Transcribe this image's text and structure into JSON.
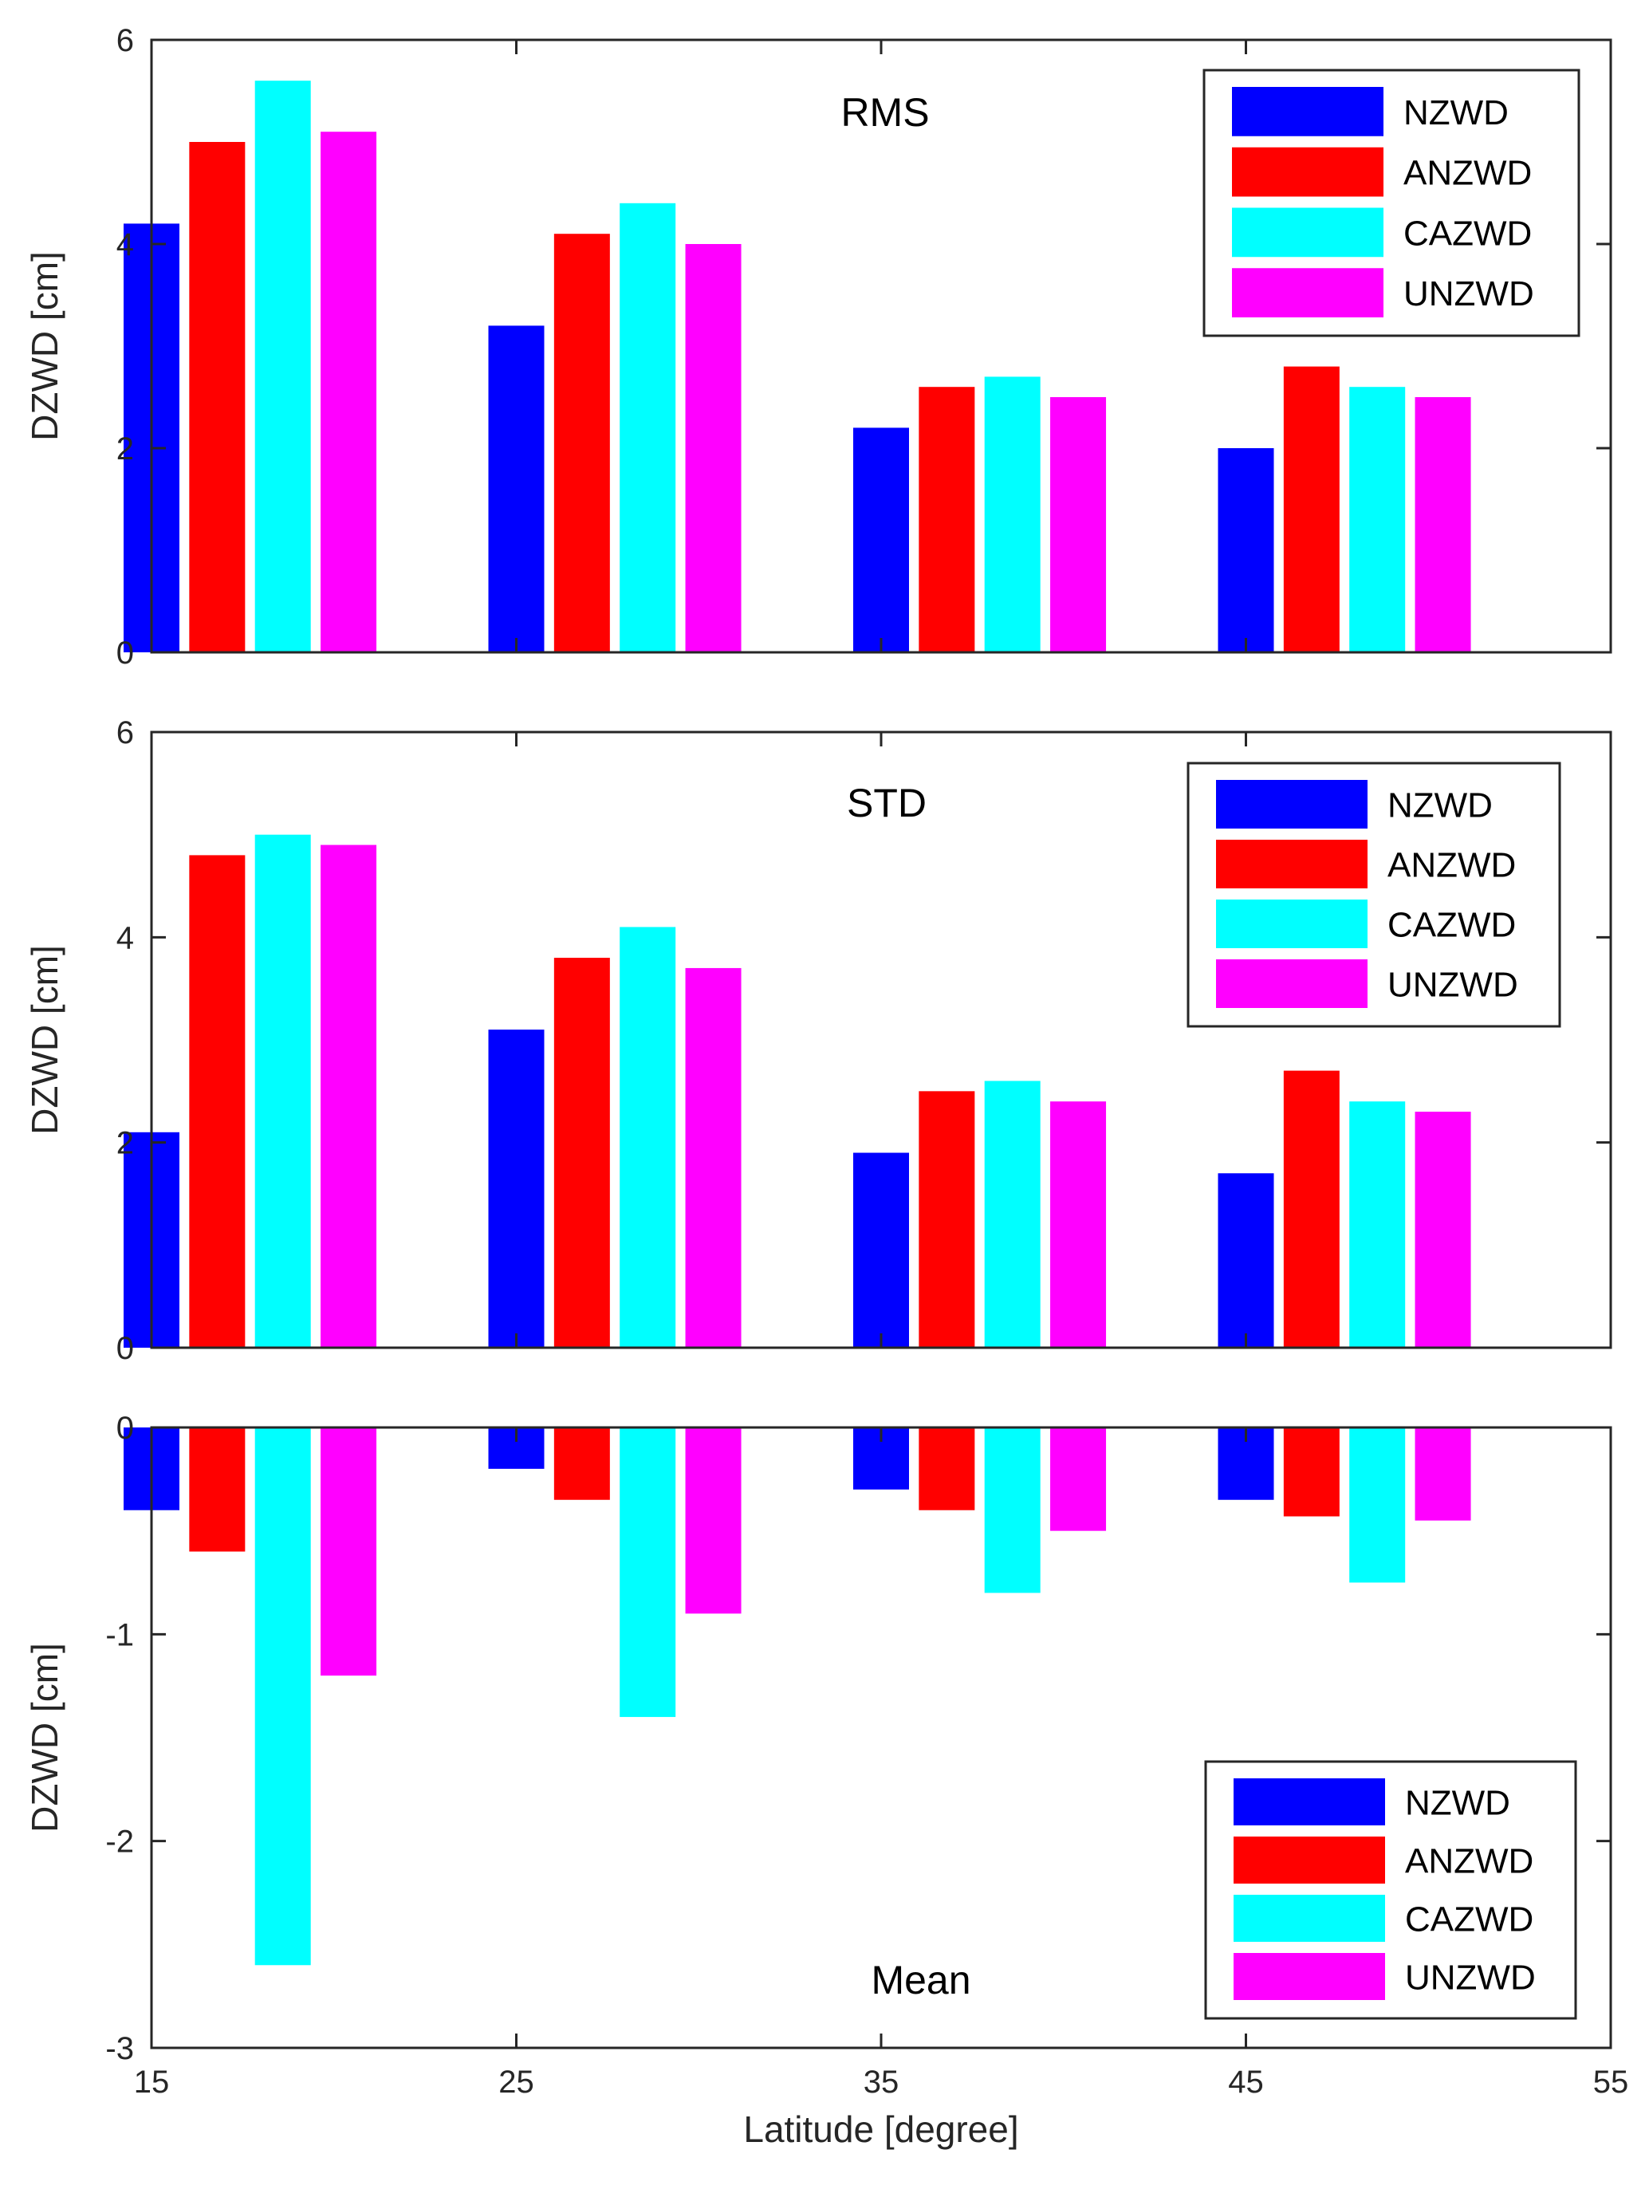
{
  "chart_data": [
    {
      "type": "bar",
      "title": "RMS",
      "ylabel": "DZWD [cm]",
      "xlabel": "",
      "x": [
        17.5,
        27.5,
        37.5,
        47.5
      ],
      "xlim": [
        15,
        55
      ],
      "ylim": [
        0,
        6
      ],
      "yticks": [
        0,
        2,
        4,
        6
      ],
      "series": [
        {
          "name": "NZWD",
          "values": [
            4.2,
            3.2,
            2.2,
            2.0
          ]
        },
        {
          "name": "ANZWD",
          "values": [
            5.0,
            4.1,
            2.6,
            2.8
          ]
        },
        {
          "name": "CAZWD",
          "values": [
            5.6,
            4.4,
            2.7,
            2.6
          ]
        },
        {
          "name": "UNZWD",
          "values": [
            5.1,
            4.0,
            2.5,
            2.5
          ]
        }
      ],
      "legend": "top-right"
    },
    {
      "type": "bar",
      "title": "STD",
      "ylabel": "DZWD [cm]",
      "xlabel": "",
      "x": [
        17.5,
        27.5,
        37.5,
        47.5
      ],
      "xlim": [
        15,
        55
      ],
      "ylim": [
        0,
        6
      ],
      "yticks": [
        0,
        2,
        4,
        6
      ],
      "series": [
        {
          "name": "NZWD",
          "values": [
            2.1,
            3.1,
            1.9,
            1.7
          ]
        },
        {
          "name": "ANZWD",
          "values": [
            4.8,
            3.8,
            2.5,
            2.7
          ]
        },
        {
          "name": "CAZWD",
          "values": [
            5.0,
            4.1,
            2.6,
            2.4
          ]
        },
        {
          "name": "UNZWD",
          "values": [
            4.9,
            3.7,
            2.4,
            2.3
          ]
        }
      ],
      "legend": "top-right"
    },
    {
      "type": "bar",
      "title": "Mean",
      "ylabel": "DZWD [cm]",
      "xlabel": "Latitude [degree]",
      "x": [
        17.5,
        27.5,
        37.5,
        47.5
      ],
      "xlim": [
        15,
        55
      ],
      "ylim": [
        -3,
        0
      ],
      "yticks": [
        -3,
        -2,
        -1,
        0
      ],
      "xticks": [
        15,
        25,
        35,
        45,
        55
      ],
      "series": [
        {
          "name": "NZWD",
          "values": [
            -0.4,
            -0.2,
            -0.3,
            -0.35
          ]
        },
        {
          "name": "ANZWD",
          "values": [
            -0.6,
            -0.35,
            -0.4,
            -0.43
          ]
        },
        {
          "name": "CAZWD",
          "values": [
            -2.6,
            -1.4,
            -0.8,
            -0.75
          ]
        },
        {
          "name": "UNZWD",
          "values": [
            -1.2,
            -0.9,
            -0.5,
            -0.45
          ]
        }
      ],
      "legend": "bottom-right"
    }
  ],
  "colors": {
    "NZWD": "#0000ff",
    "ANZWD": "#ff0000",
    "CAZWD": "#00ffff",
    "UNZWD": "#ff00ff",
    "axis": "#262626"
  }
}
